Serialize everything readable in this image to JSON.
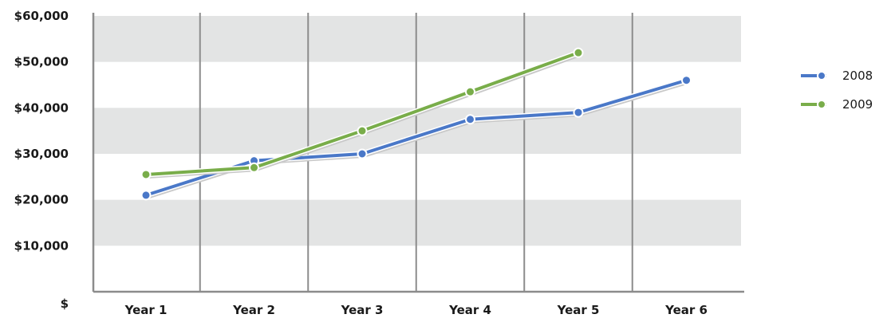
{
  "chart_data": {
    "type": "line",
    "categories": [
      "Year 1",
      "Year 2",
      "Year 3",
      "Year 4",
      "Year 5",
      "Year 6"
    ],
    "series": [
      {
        "name": "2008",
        "color": "#4a78c8",
        "values": [
          21000,
          28500,
          30000,
          37500,
          39000,
          46000
        ]
      },
      {
        "name": "2009",
        "color": "#79ad4a",
        "values": [
          25500,
          27000,
          35000,
          43500,
          52000,
          null
        ]
      }
    ],
    "ylim": [
      0,
      60000
    ],
    "yticks": [
      {
        "value": 0,
        "label": "$"
      },
      {
        "value": 10000,
        "label": "$10,000"
      },
      {
        "value": 20000,
        "label": "$20,000"
      },
      {
        "value": 30000,
        "label": "$30,000"
      },
      {
        "value": 40000,
        "label": "$40,000"
      },
      {
        "value": 50000,
        "label": "$50,000"
      },
      {
        "value": 60000,
        "label": "$60,000"
      }
    ],
    "title": "",
    "xlabel": "",
    "ylabel": "",
    "grid": "alternating horizontal bands with vertical category lines",
    "band_color": "#e3e4e4",
    "gridline_color": "#8c8c8c",
    "legend_position": "right"
  }
}
